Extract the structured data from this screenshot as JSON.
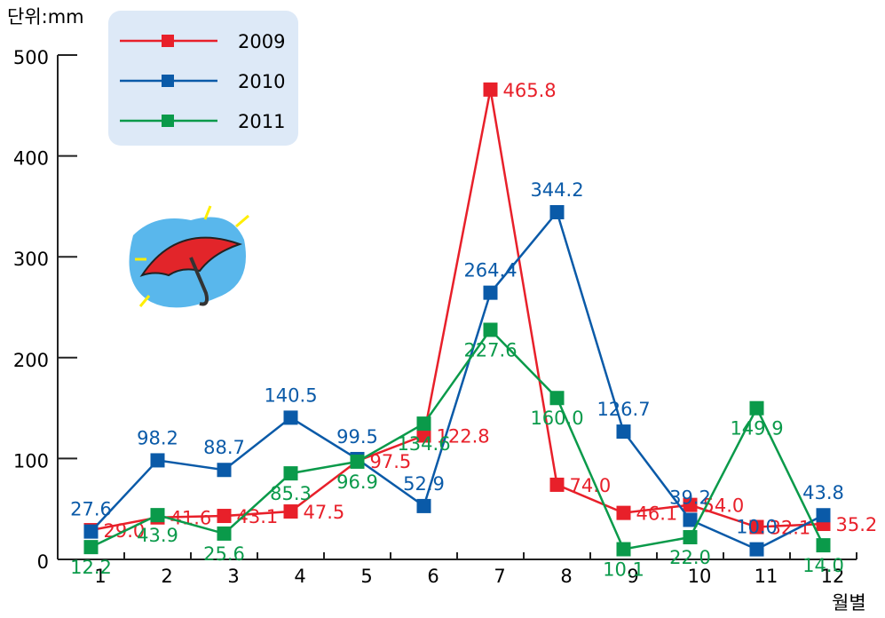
{
  "chart_data": {
    "type": "line",
    "y_label": "단위:mm",
    "x_label": "월별",
    "x": [
      0.5,
      1.5,
      2.5,
      3.5,
      4.5,
      5.5,
      6.5,
      7.5,
      8.5,
      9.5,
      10.5,
      11.5
    ],
    "xlim": [
      0,
      12
    ],
    "xticks": [
      1,
      2,
      3,
      4,
      5,
      6,
      7,
      8,
      9,
      10,
      11,
      12
    ],
    "ylim": [
      0,
      500
    ],
    "yticks": [
      0,
      100,
      200,
      300,
      400,
      500
    ],
    "legend": "top-left",
    "series": [
      {
        "name": "2009",
        "color": "#e8202a",
        "values": [
          29.0,
          41.6,
          43.1,
          47.5,
          97.5,
          122.8,
          465.8,
          74.0,
          46.1,
          54.0,
          32.1,
          35.2
        ],
        "value_labels": [
          "29.0",
          "41.6",
          "43.1",
          "47.5",
          "97.5",
          "122.8",
          "465.8",
          "74.0",
          "46.1",
          "54.0",
          "32.1",
          "35.2"
        ]
      },
      {
        "name": "2010",
        "color": "#0a5aa8",
        "values": [
          27.6,
          98.2,
          88.7,
          140.5,
          99.5,
          52.9,
          264.4,
          344.2,
          126.7,
          39.2,
          10.0,
          43.8
        ],
        "value_labels": [
          "27.6",
          "98.2",
          "88.7",
          "140.5",
          "99.5",
          "52.9",
          "264.4",
          "344.2",
          "126.7",
          "39.2",
          "10.0",
          "43.8"
        ]
      },
      {
        "name": "2011",
        "color": "#0a9a4a",
        "values": [
          12.2,
          43.9,
          25.6,
          85.3,
          96.9,
          134.6,
          227.6,
          160.0,
          10.1,
          22.0,
          149.9,
          14.0
        ],
        "value_labels": [
          "12.2",
          "43.9",
          "25.6",
          "85.3",
          "96.9",
          "134.6",
          "227.6",
          "160.0",
          "10.1",
          "22.0",
          "149.9",
          "14.0"
        ]
      }
    ]
  }
}
